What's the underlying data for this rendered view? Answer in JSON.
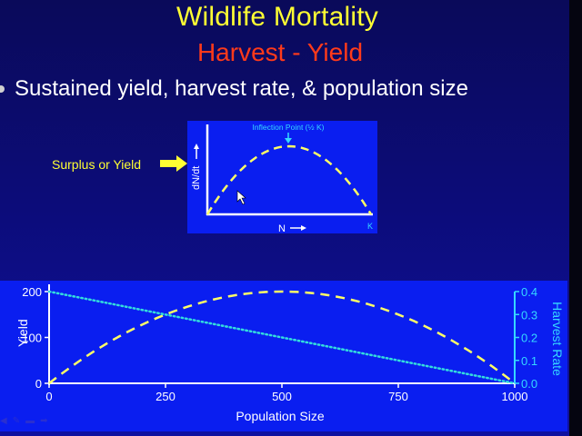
{
  "slide": {
    "title": "Wildlife Mortality",
    "subtitle": "Harvest - Yield",
    "bullet": "Sustained yield, harvest rate, & population size"
  },
  "inset": {
    "surplus_label": "Surplus or Yield",
    "inflection_label": "Inflection Point (½ K)",
    "y_axis_label": "dN/dt",
    "x_axis_label": "N",
    "k_label": "K"
  },
  "colors": {
    "title": "#ffff33",
    "subtitle": "#ff3a1a",
    "panel": "#0a1ef0",
    "yield_line": "#ffff66",
    "harvest_line": "#33dddd"
  },
  "nav": {
    "icons": [
      "previous-icon",
      "pen-icon",
      "menu-icon",
      "next-icon"
    ]
  },
  "chart_data": [
    {
      "type": "line",
      "title": "",
      "xlabel": "N",
      "ylabel": "dN/dt",
      "x": [
        0,
        0.125,
        0.25,
        0.375,
        0.5,
        0.625,
        0.75,
        0.875,
        1
      ],
      "series": [
        {
          "values": [
            0,
            0.4375,
            0.75,
            0.9375,
            1,
            0.9375,
            0.75,
            0.4375,
            0
          ]
        }
      ],
      "annotations": [
        "Inflection Point (½ K)",
        "K"
      ],
      "grid": false
    },
    {
      "type": "line",
      "title": "",
      "xlabel": "Population Size",
      "ylabel": "Yield",
      "y2label": "Harvest Rate",
      "x": [
        0,
        125,
        250,
        375,
        500,
        625,
        750,
        875,
        1000
      ],
      "xticks": [
        "0",
        "250",
        "500",
        "750",
        "1000"
      ],
      "yticks": [
        "0",
        "100",
        "200"
      ],
      "y2ticks": [
        "0.0",
        "0.1",
        "0.2",
        "0.3",
        "0.4"
      ],
      "ylim": [
        0,
        200
      ],
      "y2lim": [
        0,
        0.4
      ],
      "series": [
        {
          "axis": "left",
          "style": "dashed",
          "values": [
            0,
            87.5,
            150,
            187.5,
            200,
            187.5,
            150,
            87.5,
            0
          ]
        },
        {
          "axis": "right",
          "style": "dotted",
          "values": [
            0.4,
            0.35,
            0.3,
            0.25,
            0.2,
            0.15,
            0.1,
            0.05,
            0
          ]
        }
      ],
      "grid": false
    }
  ]
}
